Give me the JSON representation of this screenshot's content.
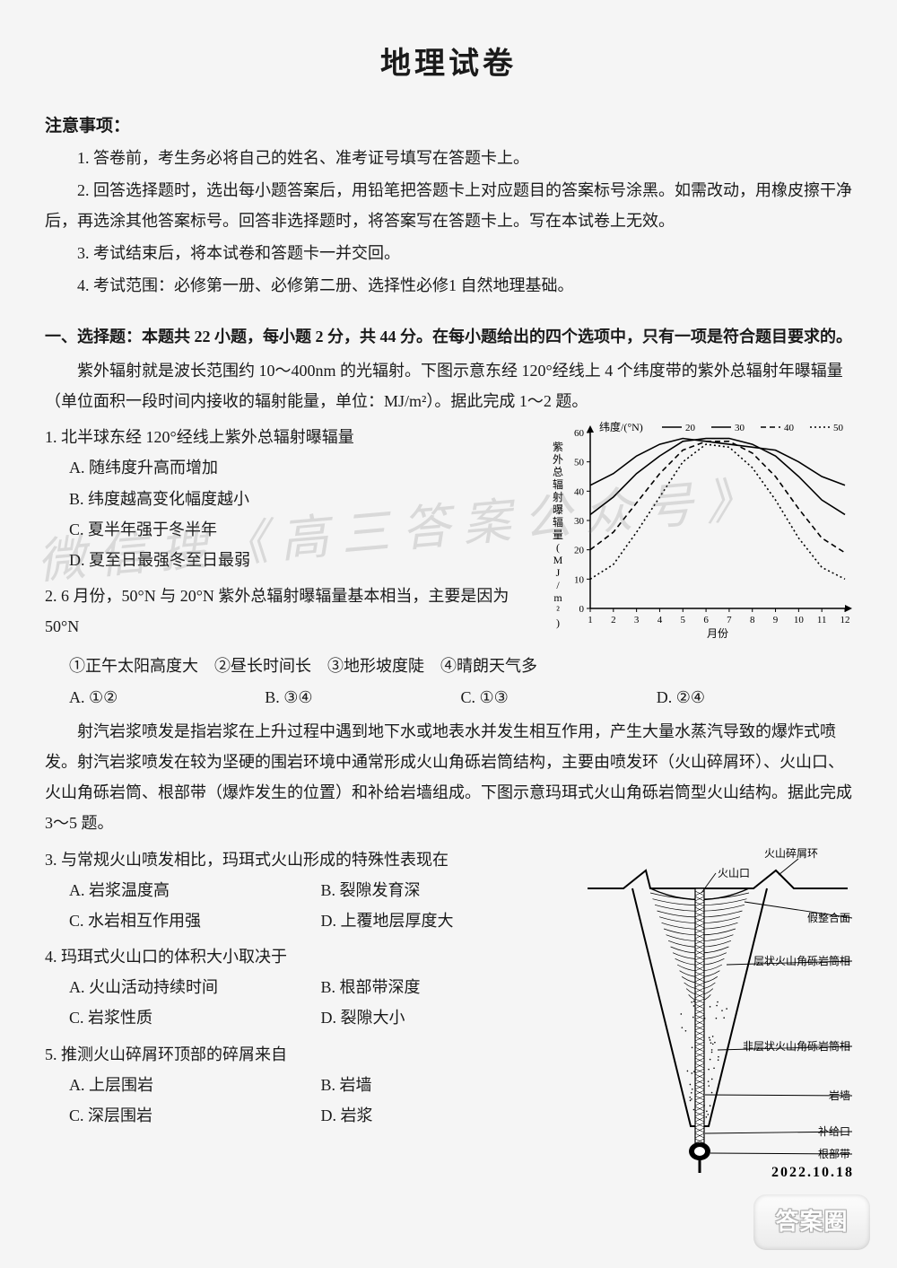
{
  "title": "地理试卷",
  "notice": {
    "head": "注意事项：",
    "items": [
      "1. 答卷前，考生务必将自己的姓名、准考证号填写在答题卡上。",
      "2. 回答选择题时，选出每小题答案后，用铅笔把答题卡上对应题目的答案标号涂黑。如需改动，用橡皮擦干净后，再选涂其他答案标号。回答非选择题时，将答案写在答题卡上。写在本试卷上无效。",
      "3. 考试结束后，将本试卷和答题卡一并交回。",
      "4. 考试范围：必修第一册、必修第二册、选择性必修1 自然地理基础。"
    ]
  },
  "section_head": "一、选择题：本题共 22 小题，每小题 2 分，共 44 分。在每小题给出的四个选项中，只有一项是符合题目要求的。",
  "intro1a": "紫外辐射就是波长范围约 10～400nm 的光辐射。下图示意东经 120°经线上 4 个纬度带的紫外总辐射年曝辐量（单位面积一段时间内接收的辐射能量，单位：MJ/m²）。据此完成 1～2 题。",
  "q1": {
    "stem": "1. 北半球东经 120°经线上紫外总辐射曝辐量",
    "opts": [
      "A. 随纬度升高而增加",
      "B. 纬度越高变化幅度越小",
      "C. 夏半年强于冬半年",
      "D. 夏至日最强冬至日最弱"
    ]
  },
  "q2": {
    "stem": "2. 6 月份，50°N 与 20°N 紫外总辐射曝辐量基本相当，主要是因为 50°N",
    "circled": "①正午太阳高度大　②昼长时间长　③地形坡度陡　④晴朗天气多",
    "opts": [
      "A. ①②",
      "B. ③④",
      "C. ①③",
      "D. ②④"
    ]
  },
  "intro2": "射汽岩浆喷发是指岩浆在上升过程中遇到地下水或地表水并发生相互作用，产生大量水蒸汽导致的爆炸式喷发。射汽岩浆喷发在较为坚硬的围岩环境中通常形成火山角砾岩筒结构，主要由喷发环（火山碎屑环）、火山口、火山角砾岩筒、根部带（爆炸发生的位置）和补给岩墙组成。下图示意玛珥式火山角砾岩筒型火山结构。据此完成 3～5 题。",
  "q3": {
    "stem": "3. 与常规火山喷发相比，玛珥式火山形成的特殊性表现在",
    "opts": [
      "A. 岩浆温度高",
      "B. 裂隙发育深",
      "C. 水岩相互作用强",
      "D. 上覆地层厚度大"
    ]
  },
  "q4": {
    "stem": "4. 玛珥式火山口的体积大小取决于",
    "opts": [
      "A. 火山活动持续时间",
      "B. 根部带深度",
      "C. 岩浆性质",
      "D. 裂隙大小"
    ]
  },
  "q5": {
    "stem": "5. 推测火山碎屑环顶部的碎屑来自",
    "opts": [
      "A. 上层围岩",
      "B. 岩墙",
      "C. 深层围岩",
      "D. 岩浆"
    ]
  },
  "chart1": {
    "type": "line",
    "xlabel": "月份",
    "ylabel": "紫外总辐射曝辐量(MJ/m²)",
    "legend_label": "纬度/(°N)",
    "xlim": [
      1,
      12
    ],
    "ylim": [
      0,
      60
    ],
    "xticks": [
      1,
      2,
      3,
      4,
      5,
      6,
      7,
      8,
      9,
      10,
      11,
      12
    ],
    "yticks": [
      0,
      10,
      20,
      30,
      40,
      50,
      60
    ],
    "series": [
      {
        "name": "20",
        "dash": "0",
        "data": [
          42,
          46,
          52,
          56,
          58,
          57,
          56,
          55,
          54,
          50,
          45,
          42
        ]
      },
      {
        "name": "30",
        "dash": "0",
        "data": [
          32,
          38,
          46,
          52,
          57,
          58,
          58,
          56,
          52,
          45,
          37,
          32
        ]
      },
      {
        "name": "40",
        "dash": "6 4",
        "data": [
          20,
          26,
          36,
          46,
          54,
          57,
          57,
          53,
          45,
          34,
          24,
          19
        ]
      },
      {
        "name": "50",
        "dash": "2 3",
        "data": [
          10,
          15,
          26,
          38,
          50,
          56,
          55,
          48,
          37,
          24,
          14,
          10
        ]
      }
    ],
    "axis_color": "#000",
    "line_color": "#000",
    "bg": "#f5f5f5",
    "label_fontsize": 12,
    "tick_fontsize": 11
  },
  "chart2": {
    "type": "diagram",
    "labels": {
      "ring": "火山碎屑环",
      "crater": "火山口",
      "unconformity": "假整合面",
      "layered": "层状火山角砾岩筒相",
      "nonlayered": "非层状火山角砾岩筒相",
      "dyke": "岩墙",
      "feeder": "补给口",
      "root": "根部带",
      "date": "2022.10.18"
    },
    "colors": {
      "outline": "#000",
      "fill": "#fff",
      "hatch": "#000"
    }
  },
  "watermark": {
    "text": "微信搜《高三答案公众号》",
    "logo": "答案圈"
  }
}
